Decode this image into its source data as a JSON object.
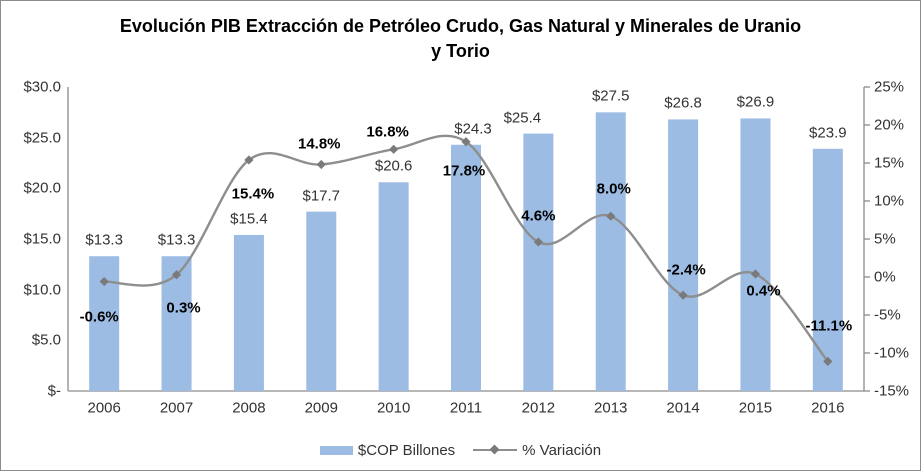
{
  "title": {
    "line1": "Evolución PIB Extracción de Petróleo Crudo, Gas Natural y Minerales  de Uranio",
    "line2": "y Torio"
  },
  "chart_data": {
    "type": "bar",
    "subtype": "combo-bar-line",
    "categories": [
      "2006",
      "2007",
      "2008",
      "2009",
      "2010",
      "2011",
      "2012",
      "2013",
      "2014",
      "2015",
      "2016"
    ],
    "series": [
      {
        "name": "$COP Billones",
        "type": "bar",
        "axis": "left",
        "values": [
          13.3,
          13.3,
          15.4,
          17.7,
          20.6,
          24.3,
          25.4,
          27.5,
          26.8,
          26.9,
          23.9
        ],
        "labels": [
          "$13.3",
          "$13.3",
          "$15.4",
          "$17.7",
          "$20.6",
          "$24.3",
          "$25.4",
          "$27.5",
          "$26.8",
          "$26.9",
          "$23.9"
        ],
        "label_dx": [
          0,
          0,
          0,
          0,
          0,
          7,
          -16,
          0,
          0,
          0,
          0
        ]
      },
      {
        "name": "% Variación",
        "type": "line",
        "axis": "right",
        "smooth": true,
        "values": [
          -0.6,
          0.3,
          15.4,
          14.8,
          16.8,
          17.8,
          4.6,
          8.0,
          -2.4,
          0.4,
          -11.1
        ],
        "labels": [
          "-0.6%",
          "0.3%",
          "15.4%",
          "14.8%",
          "16.8%",
          "17.8%",
          "4.6%",
          "8.0%",
          "-2.4%",
          "0.4%",
          "-11.1%"
        ],
        "label_dx": [
          -5,
          7,
          4,
          -2,
          -6,
          -2,
          0,
          3,
          3,
          8,
          1
        ],
        "label_dy": [
          35,
          33,
          34,
          -21,
          -17,
          29,
          -26,
          -27,
          -25,
          17,
          -35
        ]
      }
    ],
    "left_axis": {
      "min": 0,
      "max": 30,
      "step": 5,
      "tick_labels": [
        "$-",
        "$5.0",
        "$10.0",
        "$15.0",
        "$20.0",
        "$25.0",
        "$30.0"
      ]
    },
    "right_axis": {
      "min": -15,
      "max": 25,
      "step": 5,
      "tick_labels": [
        "-15%",
        "-10%",
        "-5%",
        "0%",
        "5%",
        "10%",
        "15%",
        "20%",
        "25%"
      ]
    },
    "grid": false,
    "legend_position": "bottom"
  },
  "colors": {
    "bar": "#9CBCE4",
    "line": "#8E8E8E",
    "marker": "#7A7A7A",
    "axis": "#8C8C8C",
    "text": "#333333",
    "data_label": "#000000"
  }
}
